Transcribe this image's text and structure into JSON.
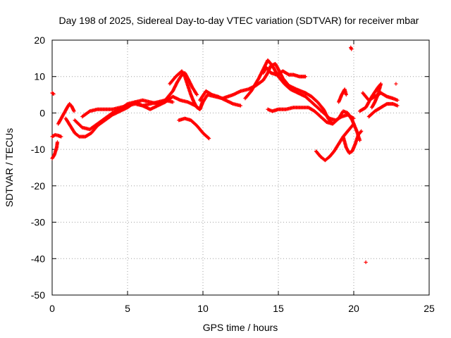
{
  "chart_data": {
    "type": "scatter",
    "title": "Day 198 of 2025, Sidereal Day-to-day VTEC variation (SDTVAR) for receiver mbar",
    "xlabel": "GPS time / hours",
    "ylabel": "SDTVAR / TECUs",
    "xlim": [
      0,
      25
    ],
    "ylim": [
      -50,
      20
    ],
    "xticks": [
      0,
      5,
      10,
      15,
      20,
      25
    ],
    "yticks": [
      -50,
      -40,
      -30,
      -20,
      -10,
      0,
      10,
      20
    ],
    "grid": true,
    "marker": "plus",
    "color": "#ff0000",
    "series": [
      {
        "name": "SDTVAR",
        "segments": [
          [
            [
              0.0,
              -12.5
            ],
            [
              0.15,
              -11.5
            ],
            [
              0.3,
              -9.5
            ],
            [
              0.35,
              -8.0
            ]
          ],
          [
            [
              0.0,
              -6.5
            ],
            [
              0.2,
              -6.0
            ],
            [
              0.4,
              -6.2
            ],
            [
              0.6,
              -6.5
            ]
          ],
          [
            [
              0.0,
              5.5
            ],
            [
              0.1,
              5.2
            ]
          ],
          [
            [
              0.4,
              -3.0
            ],
            [
              0.6,
              -1.5
            ],
            [
              0.8,
              0.0
            ],
            [
              1.0,
              1.5
            ],
            [
              1.15,
              2.5
            ],
            [
              1.3,
              1.8
            ],
            [
              1.45,
              0.5
            ]
          ],
          [
            [
              0.9,
              -1.5
            ],
            [
              1.2,
              -3.5
            ],
            [
              1.5,
              -5.5
            ],
            [
              1.8,
              -6.5
            ],
            [
              2.2,
              -6.5
            ],
            [
              2.6,
              -5.5
            ],
            [
              3.0,
              -3.5
            ],
            [
              3.5,
              -2.0
            ],
            [
              4.0,
              -0.5
            ],
            [
              4.5,
              0.5
            ],
            [
              5.0,
              1.5
            ],
            [
              5.5,
              3.0
            ],
            [
              6.0,
              3.5
            ],
            [
              6.5,
              3.0
            ],
            [
              7.0,
              2.5
            ],
            [
              7.5,
              3.5
            ],
            [
              8.0,
              6.0
            ],
            [
              8.3,
              8.5
            ],
            [
              8.6,
              10.5
            ],
            [
              8.8,
              11.0
            ],
            [
              9.0,
              9.5
            ],
            [
              9.3,
              7.0
            ],
            [
              9.6,
              5.0
            ]
          ],
          [
            [
              1.5,
              -2.0
            ],
            [
              2.0,
              -4.0
            ],
            [
              2.5,
              -4.5
            ],
            [
              3.0,
              -3.0
            ],
            [
              3.5,
              -1.5
            ],
            [
              4.0,
              0.0
            ],
            [
              4.5,
              1.0
            ],
            [
              5.0,
              2.5
            ],
            [
              5.5,
              3.0
            ],
            [
              6.0,
              2.0
            ],
            [
              6.5,
              1.0
            ],
            [
              7.0,
              2.0
            ],
            [
              7.5,
              3.0
            ],
            [
              8.0,
              4.5
            ],
            [
              8.5,
              3.5
            ],
            [
              9.0,
              3.0
            ],
            [
              9.5,
              2.0
            ],
            [
              9.8,
              1.0
            ],
            [
              10.0,
              3.0
            ],
            [
              10.3,
              5.0
            ],
            [
              10.8,
              4.5
            ],
            [
              11.3,
              4.0
            ],
            [
              12.0,
              5.0
            ],
            [
              12.5,
              6.0
            ],
            [
              13.0,
              6.5
            ],
            [
              13.5,
              7.5
            ],
            [
              14.0,
              9.0
            ],
            [
              14.3,
              11.0
            ],
            [
              14.5,
              13.0
            ],
            [
              14.8,
              13.5
            ],
            [
              15.0,
              12.0
            ],
            [
              15.3,
              9.5
            ],
            [
              15.7,
              7.5
            ],
            [
              16.2,
              6.5
            ],
            [
              16.8,
              5.5
            ],
            [
              17.2,
              4.5
            ],
            [
              17.6,
              3.0
            ],
            [
              18.0,
              1.0
            ],
            [
              18.3,
              -1.5
            ],
            [
              18.6,
              -3.0
            ],
            [
              19.0,
              -1.5
            ],
            [
              19.3,
              0.5
            ],
            [
              19.6,
              0.0
            ],
            [
              19.9,
              -2.0
            ],
            [
              20.2,
              -5.0
            ],
            [
              20.4,
              -7.5
            ]
          ],
          [
            [
              2.0,
              -1.0
            ],
            [
              2.5,
              0.5
            ],
            [
              3.0,
              1.0
            ],
            [
              3.5,
              1.0
            ],
            [
              4.0,
              1.0
            ],
            [
              4.5,
              1.5
            ],
            [
              5.0,
              2.0
            ],
            [
              5.5,
              2.5
            ],
            [
              6.0,
              2.0
            ],
            [
              6.5,
              2.5
            ],
            [
              7.0,
              3.0
            ],
            [
              7.5,
              3.5
            ],
            [
              8.0,
              3.0
            ]
          ],
          [
            [
              7.8,
              8.0
            ],
            [
              8.2,
              10.0
            ],
            [
              8.6,
              11.5
            ],
            [
              8.8,
              10.0
            ],
            [
              9.0,
              7.5
            ],
            [
              9.2,
              5.0
            ],
            [
              9.4,
              3.0
            ],
            [
              9.6,
              1.5
            ],
            [
              9.8,
              1.0
            ],
            [
              10.0,
              3.5
            ]
          ],
          [
            [
              8.4,
              -2.0
            ],
            [
              8.8,
              -1.5
            ],
            [
              9.2,
              -2.0
            ],
            [
              9.6,
              -3.5
            ],
            [
              10.0,
              -5.5
            ],
            [
              10.4,
              -7.0
            ]
          ],
          [
            [
              9.8,
              3.5
            ],
            [
              10.2,
              6.0
            ],
            [
              10.6,
              5.0
            ],
            [
              11.0,
              4.5
            ],
            [
              11.5,
              3.5
            ],
            [
              12.0,
              2.5
            ],
            [
              12.5,
              2.0
            ]
          ],
          [
            [
              12.8,
              4.0
            ],
            [
              13.2,
              6.0
            ],
            [
              13.7,
              9.5
            ],
            [
              14.0,
              12.0
            ],
            [
              14.3,
              14.5
            ],
            [
              14.6,
              13.0
            ],
            [
              15.0,
              10.0
            ],
            [
              15.4,
              8.0
            ],
            [
              15.8,
              6.5
            ],
            [
              16.3,
              5.5
            ],
            [
              16.8,
              4.5
            ],
            [
              17.2,
              3.0
            ],
            [
              17.6,
              1.5
            ],
            [
              18.0,
              0.0
            ],
            [
              18.4,
              -1.5
            ],
            [
              18.8,
              -2.0
            ],
            [
              19.2,
              -1.0
            ],
            [
              19.6,
              -0.5
            ],
            [
              20.0,
              -1.5
            ]
          ],
          [
            [
              14.0,
              11.0
            ],
            [
              14.2,
              12.5
            ],
            [
              14.5,
              11.0
            ],
            [
              14.9,
              10.5
            ],
            [
              15.3,
              11.5
            ],
            [
              15.7,
              10.5
            ],
            [
              16.0,
              10.5
            ],
            [
              16.4,
              10.0
            ],
            [
              16.8,
              10.0
            ]
          ],
          [
            [
              14.3,
              1.0
            ],
            [
              14.6,
              0.5
            ],
            [
              15.0,
              1.0
            ],
            [
              15.5,
              1.0
            ],
            [
              16.0,
              1.5
            ],
            [
              16.5,
              1.5
            ],
            [
              17.0,
              1.5
            ],
            [
              17.4,
              0.5
            ],
            [
              17.8,
              -1.0
            ],
            [
              18.2,
              -2.5
            ],
            [
              18.6,
              -3.0
            ]
          ],
          [
            [
              17.5,
              -10.5
            ],
            [
              17.8,
              -12.0
            ],
            [
              18.1,
              -13.0
            ],
            [
              18.4,
              -12.0
            ],
            [
              18.7,
              -10.5
            ],
            [
              19.0,
              -8.5
            ],
            [
              19.3,
              -6.5
            ],
            [
              19.6,
              -5.0
            ],
            [
              19.8,
              -4.0
            ],
            [
              20.0,
              -3.0
            ]
          ],
          [
            [
              19.3,
              -6.5
            ],
            [
              19.5,
              -9.5
            ],
            [
              19.7,
              -11.0
            ],
            [
              19.9,
              -10.5
            ],
            [
              20.1,
              -8.5
            ],
            [
              20.3,
              -6.0
            ],
            [
              20.5,
              -5.0
            ]
          ],
          [
            [
              19.0,
              3.0
            ],
            [
              19.2,
              5.0
            ],
            [
              19.4,
              6.5
            ],
            [
              19.5,
              5.0
            ]
          ],
          [
            [
              20.4,
              0.5
            ],
            [
              20.8,
              1.5
            ],
            [
              21.2,
              4.5
            ],
            [
              21.6,
              7.0
            ],
            [
              21.8,
              8.0
            ],
            [
              21.6,
              5.0
            ],
            [
              21.4,
              3.0
            ],
            [
              21.2,
              1.5
            ]
          ],
          [
            [
              20.6,
              5.5
            ],
            [
              20.8,
              4.5
            ],
            [
              21.0,
              3.5
            ],
            [
              21.4,
              4.5
            ],
            [
              21.8,
              5.5
            ],
            [
              22.2,
              4.5
            ],
            [
              22.6,
              4.0
            ],
            [
              22.9,
              3.5
            ]
          ],
          [
            [
              21.0,
              -1.0
            ],
            [
              21.4,
              0.5
            ],
            [
              21.8,
              1.5
            ],
            [
              22.2,
              2.5
            ],
            [
              22.6,
              2.5
            ],
            [
              22.9,
              2.0
            ]
          ],
          [
            [
              19.8,
              18.0
            ],
            [
              19.85,
              17.5
            ]
          ],
          [
            [
              20.8,
              -41.0
            ]
          ],
          [
            [
              22.8,
              8.0
            ]
          ]
        ]
      }
    ]
  }
}
